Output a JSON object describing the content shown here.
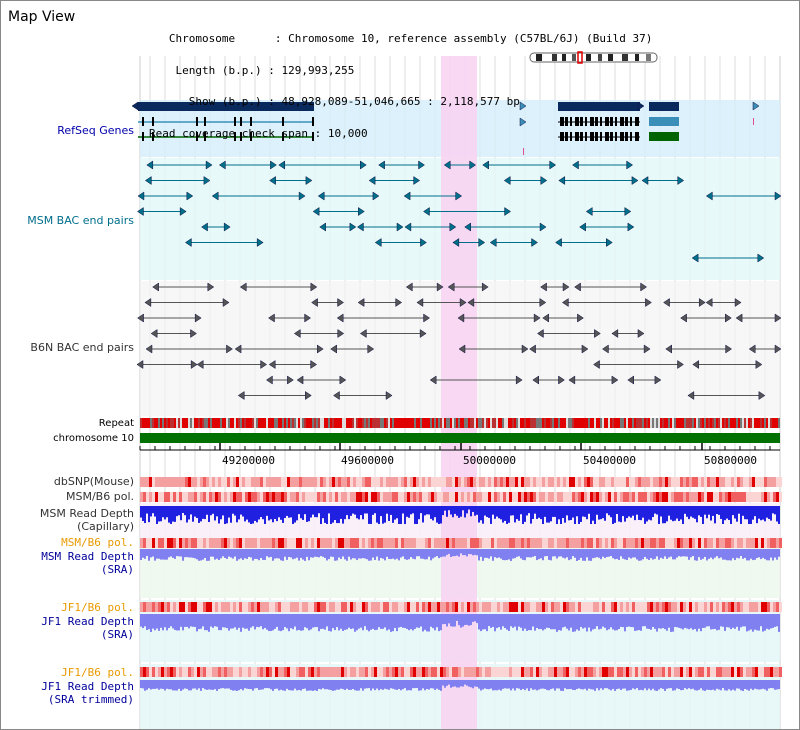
{
  "header": {
    "title": "Map View",
    "info_lines": [
      {
        "key": "   Chromosome      ",
        "value": "Chromosome 10, reference assembly (C57BL/6J) (Build 37)"
      },
      {
        "key": "    Length (b.p.) ",
        "value": "129,993,255"
      },
      {
        "key": "      Show (b.p.) ",
        "value": "48,928,089-51,046,665 : 2,118,577 bp"
      },
      {
        "key": "Read coverage check span ",
        "value": "10,000"
      }
    ]
  },
  "tracks": {
    "refseq": "RefSeq Genes",
    "msm_bac": "MSM BAC end pairs",
    "b6n_bac": "B6N BAC end pairs",
    "repeat": "Repeat",
    "chromosome": "chromosome 10",
    "dbsnp": "dbSNP(Mouse)",
    "msm_b6_pol": "MSM/B6 pol.",
    "msm_depth_cap_1": "MSM Read Depth",
    "msm_depth_cap_2": "(Capillary)",
    "msm_b6_pol_2": "MSM/B6 pol.",
    "msm_depth_sra_1": "MSM Read Depth",
    "msm_depth_sra_2": "(SRA)",
    "jf1_b6_pol": "JF1/B6 pol.",
    "jf1_depth_sra_1": "JF1 Read Depth",
    "jf1_depth_sra_2": "(SRA)",
    "jf1_b6_pol_2": "JF1/B6 pol.",
    "jf1_depth_trim_1": "JF1 Read Depth",
    "jf1_depth_trim_2": "(SRA trimmed)"
  },
  "axis": {
    "tick_labels": [
      "49200000",
      "49600000",
      "50000000",
      "50400000",
      "50800000"
    ]
  },
  "colors": {
    "highlight": "#f7d4f2",
    "refseq_bg": "#d6eefa",
    "msm_bg": "#e4f8f8",
    "b6n_bg": "#f2f2f2",
    "gene_dark": "#0a2a5e",
    "gene_mid": "#3a8fb8",
    "gene_green": "#006400",
    "msm_pair": "#00708a",
    "b6n_pair": "#555555",
    "chromosome": "#007000",
    "depth_blue": "#2020e0",
    "depth_light": "#8080f0"
  }
}
